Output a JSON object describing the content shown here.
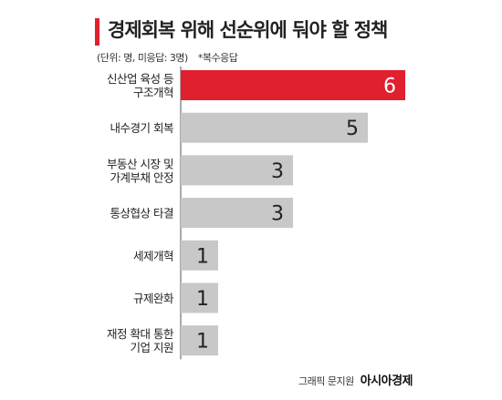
{
  "header": {
    "title": "경제회복 위해 선순위에 둬야 할 정책",
    "unit_note": "(단위: 명, 미응답: 3명)",
    "multi_note": "*복수응답",
    "accent_color": "#e0202e"
  },
  "footer": {
    "credit": "그래픽 문지원",
    "brand": "아시아경제",
    "brand_mark": "ㅁ"
  },
  "chart_data": {
    "type": "bar",
    "orientation": "horizontal",
    "categories": [
      [
        "신산업 육성 등",
        "구조개혁"
      ],
      [
        "내수경기 회복"
      ],
      [
        "부동산 시장 및",
        "가계부채 안정"
      ],
      [
        "통상협상 타결"
      ],
      [
        "세제개혁"
      ],
      [
        "규제완화"
      ],
      [
        "재정 확대 통한",
        "기업 지원"
      ]
    ],
    "values": [
      6,
      5,
      3,
      3,
      1,
      1,
      1
    ],
    "data_labels": [
      "6",
      "5",
      "3",
      "3",
      "1",
      "1",
      "1"
    ],
    "xlim": [
      0,
      6
    ],
    "highlight_index": 0,
    "highlight_color": "#e0202e",
    "bar_color": "#c8c8c8",
    "grid": false,
    "title": "경제회복 위해 선순위에 둬야 할 정책",
    "xlabel": "",
    "ylabel": ""
  }
}
